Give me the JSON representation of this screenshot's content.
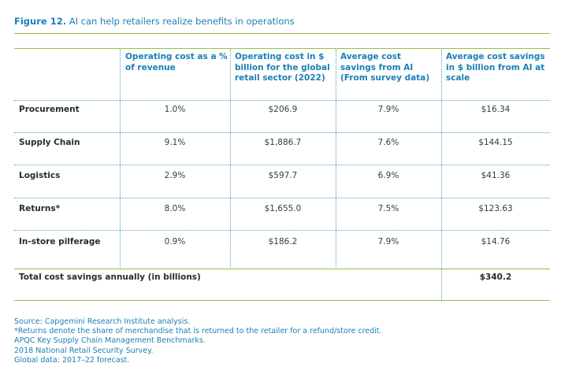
{
  "figure": {
    "number": "Figure 12.",
    "title": "AI can help retailers realize benefits in operations"
  },
  "table": {
    "headers": [
      "Operating cost as a % of revenue",
      "Operating cost in $ billion for the global retail sector (2022)",
      "Average cost savings from AI (From survey data)",
      "Average cost savings in $ billion from AI at scale"
    ],
    "rows": [
      {
        "label": "Procurement",
        "values": [
          "1.0%",
          "$206.9",
          "7.9%",
          "$16.34"
        ]
      },
      {
        "label": "Supply Chain",
        "values": [
          "9.1%",
          "$1,886.7",
          "7.6%",
          "$144.15"
        ]
      },
      {
        "label": "Logistics",
        "values": [
          "2.9%",
          "$597.7",
          "6.9%",
          "$41.36"
        ]
      },
      {
        "label": "Returns*",
        "values": [
          "8.0%",
          "$1,655.0",
          "7.5%",
          "$123.63"
        ]
      },
      {
        "label": "In-store pilferage",
        "values": [
          "0.9%",
          "$186.2",
          "7.9%",
          "$14.76"
        ]
      }
    ],
    "total": {
      "label": "Total cost savings annually (in billions)",
      "value": "$340.2"
    }
  },
  "sources": [
    "Source: Capgemini Research Institute analysis.",
    "*Returns denote the share of merchandise that is returned to the retailer for a refund/store credit.",
    "APQC Key Supply Chain Management Benchmarks.",
    "2018 National Retail Security Survey.",
    "Global data: 2017–22 forecast."
  ],
  "colors": {
    "accent": "#1a7fb5",
    "rule": "#8bc63f",
    "dotted": "#4a9fc9"
  }
}
